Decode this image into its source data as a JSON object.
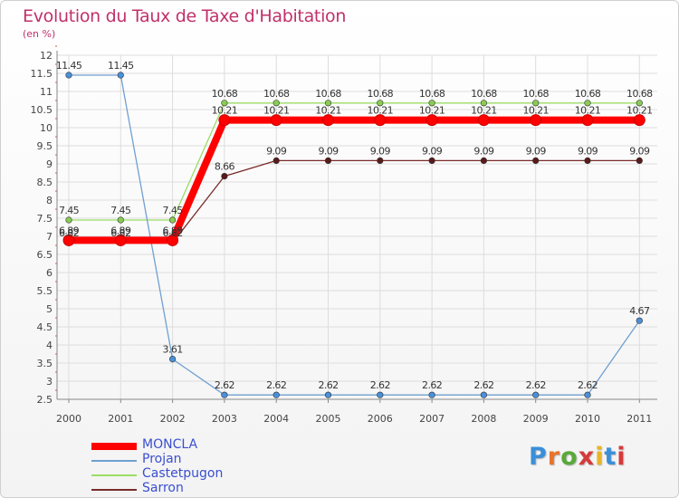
{
  "title": "Evolution du Taux de Taxe d'Habitation",
  "subtitle": "(en %)",
  "brand": {
    "text": "Proxiti",
    "letter_colors": [
      "#3b8fd9",
      "#e8732a",
      "#59a83b",
      "#d63a3a",
      "#e8b52a",
      "#3b8fd9",
      "#d63a3a"
    ]
  },
  "chart_data": {
    "type": "line",
    "x": [
      "2000",
      "2001",
      "2002",
      "2003",
      "2004",
      "2005",
      "2006",
      "2007",
      "2008",
      "2009",
      "2010",
      "2011"
    ],
    "ylim": [
      2.5,
      12
    ],
    "yticks": [
      "2.5",
      "3",
      "3.5",
      "4",
      "4.5",
      "5",
      "5.5",
      "6",
      "6.5",
      "7",
      "7.5",
      "8",
      "8.5",
      "9",
      "9.5",
      "10",
      "10.5",
      "11",
      "11.5",
      "12"
    ],
    "grid": true,
    "legend_position": "bottom-left",
    "series": [
      {
        "name": "MONCLA",
        "color": "#ff0000",
        "values": [
          6.89,
          6.89,
          6.89,
          10.21,
          10.21,
          10.21,
          10.21,
          10.21,
          10.21,
          10.21,
          10.21,
          10.21
        ],
        "labels": [
          "6.89",
          "6.89",
          "6.89",
          "10.21",
          "10.21",
          "10.21",
          "10.21",
          "10.21",
          "10.21",
          "10.21",
          "10.21",
          "10.21"
        ]
      },
      {
        "name": "Projan",
        "color": "#6fa0d0",
        "values": [
          11.45,
          11.45,
          3.61,
          2.62,
          2.62,
          2.62,
          2.62,
          2.62,
          2.62,
          2.62,
          2.62,
          4.67
        ],
        "labels": [
          "11.45",
          "11.45",
          "3.61",
          "2.62",
          "2.62",
          "2.62",
          "2.62",
          "2.62",
          "2.62",
          "2.62",
          "2.62",
          "4.67"
        ]
      },
      {
        "name": "Castetpugon",
        "color": "#99dd66",
        "values": [
          7.45,
          7.45,
          7.45,
          10.68,
          10.68,
          10.68,
          10.68,
          10.68,
          10.68,
          10.68,
          10.68,
          10.68
        ],
        "labels": [
          "7.45",
          "7.45",
          "7.45",
          "10.68",
          "10.68",
          "10.68",
          "10.68",
          "10.68",
          "10.68",
          "10.68",
          "10.68",
          "10.68"
        ]
      },
      {
        "name": "Sarron",
        "color": "#7a2a2a",
        "values": [
          6.82,
          6.82,
          6.82,
          8.66,
          9.09,
          9.09,
          9.09,
          9.09,
          9.09,
          9.09,
          9.09,
          9.09
        ],
        "labels": [
          "6.82",
          "6.82",
          "6.82",
          "8.66",
          "9.09",
          "9.09",
          "9.09",
          "9.09",
          "9.09",
          "9.09",
          "9.09",
          "9.09"
        ]
      }
    ]
  }
}
